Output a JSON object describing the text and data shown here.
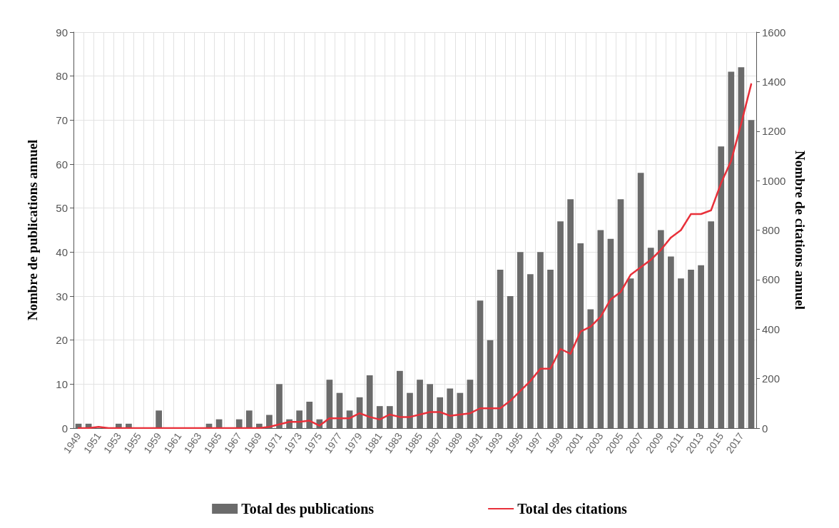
{
  "chart_data": {
    "type": "bar",
    "ylabel": "Nombre de publications annuel",
    "y2label": "Nombre de citations annuel",
    "categories": [
      "1949",
      null,
      "1951",
      null,
      "1953",
      null,
      "1955",
      null,
      "1959",
      null,
      "1961",
      null,
      "1963",
      null,
      "1965",
      null,
      "1967",
      null,
      "1969",
      null,
      "1971",
      null,
      "1973",
      null,
      "1975",
      null,
      "1977",
      null,
      "1979",
      null,
      "1981",
      null,
      "1983",
      null,
      "1985",
      null,
      "1987",
      null,
      "1989",
      null,
      "1991",
      null,
      "1993",
      null,
      "1995",
      null,
      "1997",
      null,
      "1999",
      null,
      "2001",
      null,
      "2003",
      null,
      "2005",
      null,
      "2007",
      null,
      "2009",
      null,
      "2011",
      null,
      "2013",
      null,
      "2015",
      null,
      "2017",
      null
    ],
    "series": [
      {
        "name": "Total des publications",
        "color": "#6b6b6b",
        "values": [
          1,
          1,
          0,
          0,
          1,
          1,
          0,
          0,
          4,
          0,
          0,
          0,
          0,
          1,
          2,
          0,
          2,
          4,
          1,
          3,
          10,
          2,
          4,
          6,
          2,
          11,
          8,
          4,
          7,
          12,
          5,
          5,
          13,
          8,
          11,
          10,
          7,
          9,
          8,
          11,
          29,
          20,
          36,
          30,
          40,
          35,
          40,
          36,
          47,
          52,
          42,
          27,
          45,
          43,
          52,
          34,
          58,
          41,
          45,
          39,
          34,
          36,
          37,
          47,
          64,
          81,
          82,
          70
        ]
      },
      {
        "name": "Total des citations",
        "type": "line",
        "axis": "y2",
        "color": "#e8303a",
        "values": [
          0,
          0,
          5,
          0,
          0,
          0,
          0,
          0,
          0,
          0,
          0,
          0,
          0,
          0,
          0,
          0,
          0,
          0,
          0,
          5,
          15,
          25,
          25,
          30,
          10,
          40,
          40,
          40,
          60,
          45,
          35,
          55,
          45,
          45,
          55,
          65,
          65,
          50,
          55,
          60,
          80,
          80,
          80,
          110,
          150,
          190,
          240,
          240,
          320,
          300,
          390,
          410,
          450,
          520,
          550,
          620,
          650,
          680,
          720,
          770,
          800,
          865,
          865,
          880,
          990,
          1080,
          1230,
          1390
        ]
      }
    ],
    "ylim": [
      0,
      90
    ],
    "yticks": [
      0,
      10,
      20,
      30,
      40,
      50,
      60,
      70,
      80,
      90
    ],
    "y2lim": [
      0,
      1600
    ],
    "y2ticks": [
      0,
      200,
      400,
      600,
      800,
      1000,
      1200,
      1400,
      1600
    ],
    "grid": true,
    "legend": "bottom",
    "marker": "none"
  }
}
